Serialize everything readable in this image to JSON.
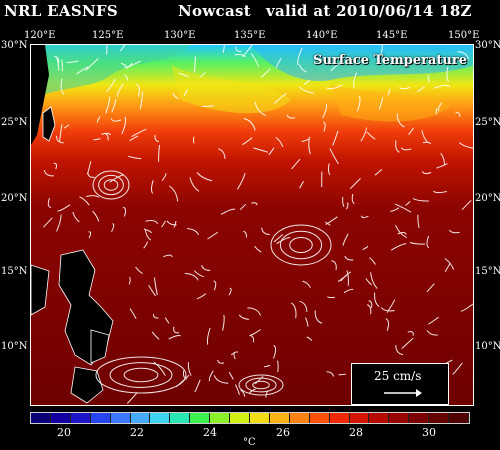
{
  "header": {
    "left": "NRL EASNFS",
    "middle": "Nowcast",
    "right": "valid at 2010/06/14 18Z"
  },
  "map": {
    "title": "Surface Temperature",
    "lon_ticks": [
      "120°E",
      "125°E",
      "130°E",
      "135°E",
      "140°E",
      "145°E",
      "150°E"
    ],
    "lat_ticks": [
      "30°N",
      "25°N",
      "20°N",
      "15°N",
      "10°N"
    ],
    "scale_label": "25 cm/s"
  },
  "colorbar": {
    "labels": [
      "20",
      "22",
      "24",
      "26",
      "28",
      "30"
    ],
    "unit": "°C",
    "colors": [
      "#0a0078",
      "#1400a0",
      "#1e14c8",
      "#2846f0",
      "#3c78ff",
      "#46aaff",
      "#3cd2f0",
      "#28e6b4",
      "#3cf050",
      "#8cf028",
      "#d2f014",
      "#f0dc14",
      "#ffb414",
      "#ff8214",
      "#ff500a",
      "#f02800",
      "#d21400",
      "#b40a00",
      "#960500",
      "#7d0000",
      "#640000",
      "#500000"
    ]
  }
}
